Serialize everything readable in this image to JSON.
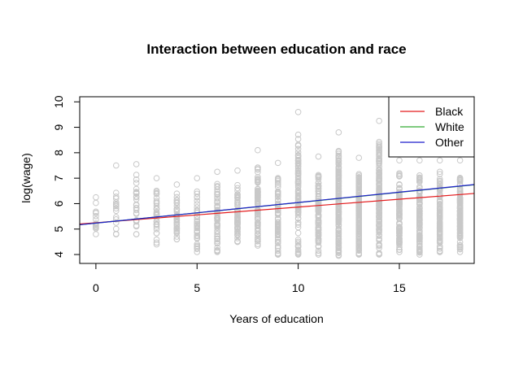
{
  "chart_data": {
    "type": "scatter",
    "title": "Interaction between education and race",
    "xlabel": "Years of education",
    "ylabel": "log(wage)",
    "xlim": [
      -0.8,
      18.7
    ],
    "ylim": [
      3.65,
      10.2
    ],
    "x_ticks": [
      0,
      5,
      10,
      15
    ],
    "y_ticks": [
      4,
      5,
      6,
      7,
      8,
      9,
      10
    ],
    "point_color": "#c8c8c8",
    "points_by_education": [
      {
        "x": 0,
        "min": 4.8,
        "max": 6.25,
        "n": 14
      },
      {
        "x": 1,
        "min": 4.8,
        "max": 7.5,
        "n": 16
      },
      {
        "x": 2,
        "min": 4.8,
        "max": 7.55,
        "n": 26
      },
      {
        "x": 3,
        "min": 4.4,
        "max": 7.0,
        "n": 30
      },
      {
        "x": 4,
        "min": 4.6,
        "max": 6.75,
        "n": 34
      },
      {
        "x": 5,
        "min": 4.1,
        "max": 7.0,
        "n": 40
      },
      {
        "x": 6,
        "min": 4.1,
        "max": 7.25,
        "n": 55
      },
      {
        "x": 7,
        "min": 4.5,
        "max": 7.3,
        "n": 60
      },
      {
        "x": 8,
        "min": 4.35,
        "max": 8.1,
        "n": 80
      },
      {
        "x": 9,
        "min": 4.0,
        "max": 7.6,
        "n": 85
      },
      {
        "x": 10,
        "min": 4.0,
        "max": 9.6,
        "n": 95
      },
      {
        "x": 11,
        "min": 4.0,
        "max": 7.85,
        "n": 100
      },
      {
        "x": 12,
        "min": 3.95,
        "max": 8.8,
        "n": 160
      },
      {
        "x": 13,
        "min": 4.0,
        "max": 7.8,
        "n": 140
      },
      {
        "x": 14,
        "min": 4.0,
        "max": 9.25,
        "n": 150
      },
      {
        "x": 15,
        "min": 4.1,
        "max": 7.7,
        "n": 110
      },
      {
        "x": 16,
        "min": 4.0,
        "max": 7.7,
        "n": 120
      },
      {
        "x": 17,
        "min": 4.1,
        "max": 7.7,
        "n": 100
      },
      {
        "x": 18,
        "min": 4.1,
        "max": 7.7,
        "n": 110
      }
    ],
    "series": [
      {
        "name": "Black",
        "color": "#e31a1c",
        "x": [
          -0.8,
          18.7
        ],
        "y": [
          5.2,
          6.4
        ]
      },
      {
        "name": "White",
        "color": "#33aa33",
        "x": [
          -0.8,
          18.7
        ],
        "y": [
          5.17,
          6.74
        ]
      },
      {
        "name": "Other",
        "color": "#1f1fcc",
        "x": [
          -0.8,
          18.7
        ],
        "y": [
          5.17,
          6.75
        ]
      }
    ],
    "legend_position": "top-right"
  }
}
